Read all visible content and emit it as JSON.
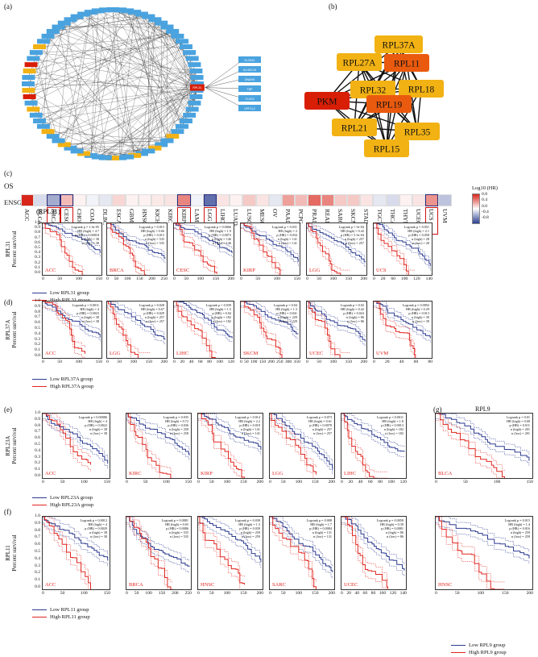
{
  "panels": {
    "a": "(a)",
    "b": "(b)",
    "c": "(c)",
    "d": "(d)",
    "e": "(e)",
    "f": "(f)",
    "g": "(g)"
  },
  "network_a": {
    "highlight_node": "RPL31",
    "side_nodes": [
      "SLC9A1",
      "KLHDC10",
      "DNAH5",
      "TBP",
      "TLCE2",
      "UPF1L2"
    ]
  },
  "network_b": {
    "nodes": [
      {
        "label": "RPL37A",
        "level": "medium"
      },
      {
        "label": "RPL27A",
        "level": "medium"
      },
      {
        "label": "RPL11",
        "level": "high"
      },
      {
        "label": "RPL32",
        "level": "medium"
      },
      {
        "label": "RPL18",
        "level": "medium"
      },
      {
        "label": "PKM",
        "level": "highest"
      },
      {
        "label": "RPL19",
        "level": "high"
      },
      {
        "label": "RPL21",
        "level": "medium"
      },
      {
        "label": "RPL35",
        "level": "medium"
      },
      {
        "label": "RPL15",
        "level": "medium"
      }
    ],
    "colors": {
      "highest": "#d81e05",
      "high": "#ea5a0e",
      "medium": "#f2b214"
    }
  },
  "heatmap": {
    "os_label": "OS",
    "gene_id": "ENSG00000071082.10",
    "gene_name": "(RPL31)",
    "cancers": [
      "ACC",
      "BLCA",
      "BRCA",
      "CESC",
      "CHOL",
      "COAD",
      "DLBC",
      "ESCA",
      "GBM",
      "HNSC",
      "KICH",
      "KIRC",
      "KIRP",
      "LAML",
      "LGG",
      "LIHC",
      "LUAD",
      "LUSC",
      "MESO",
      "OV",
      "PAAD",
      "PCPG",
      "PRAD",
      "READ",
      "SARC",
      "SKCM",
      "STAD",
      "TGCT",
      "THCA",
      "THYM",
      "UCEC",
      "UCS",
      "UVM"
    ],
    "values": [
      0.85,
      -0.15,
      -0.35,
      0.25,
      0.05,
      -0.05,
      -0.1,
      0.15,
      0.05,
      0.05,
      0.08,
      0.1,
      0.45,
      -0.05,
      -0.6,
      0.1,
      0.05,
      0.2,
      0.1,
      -0.1,
      0.35,
      0.25,
      0.55,
      0.45,
      0.2,
      0.2,
      0.1,
      -0.1,
      -0.15,
      0.05,
      0.1,
      0.4,
      -0.25
    ],
    "boxed": [
      "BRCA",
      "CESC",
      "KIRP",
      "LGG",
      "UCS"
    ],
    "legend_title": "Log10 (HR)",
    "legend_ticks": [
      "0.8",
      "0.4",
      "0.0",
      "-0.4",
      "-0.8"
    ]
  },
  "row_c": {
    "ylabel": "RPL31\nPercent survival",
    "plots": [
      {
        "cancer": "ACC",
        "stats": [
          "Logrank p = 1.3e-05",
          "HR (high) = 4.7",
          "p (HR) = 0.00018",
          "n (high) = 38",
          "n (low) = 38"
        ],
        "xticks": [
          "0",
          "50",
          "100",
          "150"
        ]
      },
      {
        "cancer": "BRCA",
        "stats": [
          "Logrank p = 0.015",
          "HR (high) = 0.66",
          "p (HR) = 0.015",
          "n (high) = 535",
          "n (low) = 535"
        ],
        "xticks": [
          "0",
          "50",
          "100",
          "150",
          "200",
          "250"
        ]
      },
      {
        "cancer": "CESC",
        "stats": [
          "Logrank p = 0.0066",
          "HR (high) = 1.9",
          "p (HR) = 0.0073",
          "n (high) = 146",
          "n (low) = 146"
        ],
        "xticks": [
          "0",
          "50",
          "100",
          "150",
          "200"
        ]
      },
      {
        "cancer": "KIRP",
        "stats": [
          "Logrank p = 0.031",
          "HR (high) = 2",
          "p (HR) = 0.034",
          "n (high) = 141",
          "n (low) = 141"
        ],
        "xticks": [
          "0",
          "50",
          "100",
          "150"
        ]
      },
      {
        "cancer": "LGG",
        "stats": [
          "Logrank p = 5e-04",
          "HR (high) = 0.42",
          "p (HR) = 5.5e-04",
          "n (high) = 257",
          "n (low) = 257"
        ],
        "xticks": [
          "0",
          "50",
          "100",
          "150",
          "200"
        ]
      },
      {
        "cancer": "UCS",
        "stats": [
          "Logrank p = 0.051",
          "HR (high) = 2.1",
          "p (HR) = 0.058",
          "n (high) = 28",
          "n (low) = 28"
        ],
        "xticks": [
          "0",
          "20",
          "60",
          "100",
          "120",
          "140"
        ]
      }
    ],
    "legend": [
      "Low RPL31 group",
      "High RPL31 group"
    ]
  },
  "row_d": {
    "ylabel": "RPL37A\nPercent survival",
    "plots": [
      {
        "cancer": "ACC",
        "stats": [
          "Logrank p = 0.0011",
          "HR (high) = 4",
          "p (HR) = 0.0023",
          "n (high) = 38",
          "n (low) = 38"
        ],
        "xticks": [
          "0",
          "50",
          "100",
          "150"
        ]
      },
      {
        "cancer": "LGG",
        "stats": [
          "Logrank p = 0.028",
          "HR (high) = 0.67",
          "p (HR) = 0.029",
          "n (high) = 257",
          "n (low) = 257"
        ],
        "xticks": [
          "0",
          "50",
          "100",
          "150",
          "200"
        ]
      },
      {
        "cancer": "LIHC",
        "stats": [
          "Logrank p = 0.039",
          "HR (high) = 1.5",
          "p (HR) = 0.04",
          "n (high) = 182",
          "n (low) = 182"
        ],
        "xticks": [
          "0",
          "20",
          "40",
          "60",
          "80",
          "100",
          "120"
        ]
      },
      {
        "cancer": "SKCM",
        "stats": [
          "Logrank p = 0.04",
          "HR (high) = 1.3",
          "p (HR) = 0.041",
          "n (high) = 229",
          "n (low) = 229"
        ],
        "xticks": [
          "0",
          "50",
          "100",
          "150",
          "200",
          "250",
          "300",
          "350"
        ]
      },
      {
        "cancer": "UCEC",
        "stats": [
          "Logrank p = 0.02",
          "HR (high) = 0.42",
          "p (HR) = 0.024",
          "n (high) = 86",
          "n (low) = 86"
        ],
        "xticks": [
          "0",
          "50",
          "100",
          "150",
          "200"
        ]
      },
      {
        "cancer": "UVM",
        "stats": [
          "Logrank p = 0.0092",
          "HR (high) = 0.29",
          "p (HR) = 0.013",
          "n (high) = 39",
          "n (low) = 39"
        ],
        "xticks": [
          "0",
          "20",
          "40",
          "60",
          "80"
        ]
      }
    ],
    "legend": [
      "Low RPL37A group",
      "High RPL37A group"
    ]
  },
  "row_e": {
    "ylabel": "RPL23A\nPercent survival",
    "plots": [
      {
        "cancer": "ACC",
        "stats": [
          "Logrank p = 0.00086",
          "HR (high) = 4",
          "p (HR) = 0.0022",
          "n (high) = 38",
          "n (low) = 38"
        ],
        "xticks": [
          "0",
          "50",
          "100",
          "150"
        ]
      },
      {
        "cancer": "KIRC",
        "stats": [
          "Logrank p = 0.035",
          "HR (high) = 0.72",
          "p (HR) = 0.036",
          "n (high) = 258",
          "n (low) = 258"
        ],
        "xticks": [
          "0",
          "50",
          "100",
          "150"
        ]
      },
      {
        "cancer": "KIRP",
        "stats": [
          "Logrank p = 0.014",
          "HR (high) = 2.2",
          "p (HR) = 0.018",
          "n (high) = 141",
          "n (low) = 141"
        ],
        "xticks": [
          "0",
          "50",
          "100",
          "150",
          "200"
        ]
      },
      {
        "cancer": "LGG",
        "stats": [
          "Logrank p = 0.073",
          "HR (high) = 0.61",
          "p (HR) = 0.0078",
          "n (high) = 257",
          "n (low) = 257"
        ],
        "xticks": [
          "0",
          "50",
          "100",
          "150",
          "200"
        ]
      },
      {
        "cancer": "LIHC",
        "stats": [
          "Logrank p = 0.0011",
          "HR (high) = 1.8",
          "p (HR) = 0.0013",
          "n (high) = 182",
          "n (low) = 182"
        ],
        "xticks": [
          "0",
          "20",
          "40",
          "60",
          "80",
          "100",
          "120"
        ]
      }
    ],
    "legend": [
      "Low RPL23A group",
      "High RPL23A group"
    ]
  },
  "row_g": {
    "title": "RPL9",
    "plots": [
      {
        "cancer": "BLCA",
        "stats": [
          "Logrank p = 0.01",
          "HR (high) = 0.68",
          "p (HR) = 0.011",
          "n (high) = 201",
          "n (low) = 201"
        ],
        "xticks": [
          "0",
          "50",
          "100",
          "150"
        ]
      },
      {
        "cancer": "HNSC",
        "stats": [
          "Logrank p = 0.015",
          "HR (high) = 1.4",
          "p (HR) = 0.016",
          "n (high) = 259",
          "n (low) = 259"
        ],
        "xticks": [
          "0",
          "50",
          "100",
          "150",
          "200"
        ]
      }
    ],
    "legend": [
      "Low RPL9 group",
      "High RPL9 group"
    ]
  },
  "row_f": {
    "ylabel": "RPL11\nPercent survival",
    "plots": [
      {
        "cancer": "ACC",
        "stats": [
          "Logrank p = 0.0012",
          "HR (high) = 4",
          "p (HR) = 0.0029",
          "n (high) = 38",
          "n (low) = 38"
        ],
        "xticks": [
          "0",
          "50",
          "100",
          "150"
        ]
      },
      {
        "cancer": "BRCA",
        "stats": [
          "Logrank p = 0.0081",
          "HR (high) = 0.65",
          "p (HR) = 0.0086",
          "n (high) = 535",
          "n (low) = 535"
        ],
        "xticks": [
          "0",
          "50",
          "100",
          "150",
          "200",
          "250"
        ]
      },
      {
        "cancer": "HNSC",
        "stats": [
          "Logrank p = 0.038",
          "HR (high) = 1.3",
          "p (HR) = 0.039",
          "n (high) = 259",
          "n (low) = 259"
        ],
        "xticks": [
          "0",
          "50",
          "100",
          "150",
          "200"
        ]
      },
      {
        "cancer": "SARC",
        "stats": [
          "Logrank p = 0.008",
          "HR (high) = 1.7",
          "p (HR) = 0.0084",
          "n (high) = 131",
          "n (low) = 131"
        ],
        "xticks": [
          "0",
          "50",
          "100",
          "150",
          "200"
        ]
      },
      {
        "cancer": "UCEC",
        "stats": [
          "Logrank p = 0.0058",
          "HR (high) = 0.39",
          "p (HR) = 0.0081",
          "n (high) = 86",
          "n (low) = 86"
        ],
        "xticks": [
          "0",
          "20",
          "40",
          "60",
          "80",
          "100",
          "120",
          "140"
        ]
      }
    ],
    "legend": [
      "Low RPL11 group",
      "High RPL11 group"
    ]
  },
  "y_ticks": [
    "1.0",
    "0.9",
    "0.8",
    "0.7",
    "0.6",
    "0.5",
    "0.4",
    "0.3",
    "0.2",
    "0.1",
    "0.0"
  ],
  "colors": {
    "low": "#2b3a8f",
    "high": "#e0261f",
    "box": "#d01010"
  }
}
